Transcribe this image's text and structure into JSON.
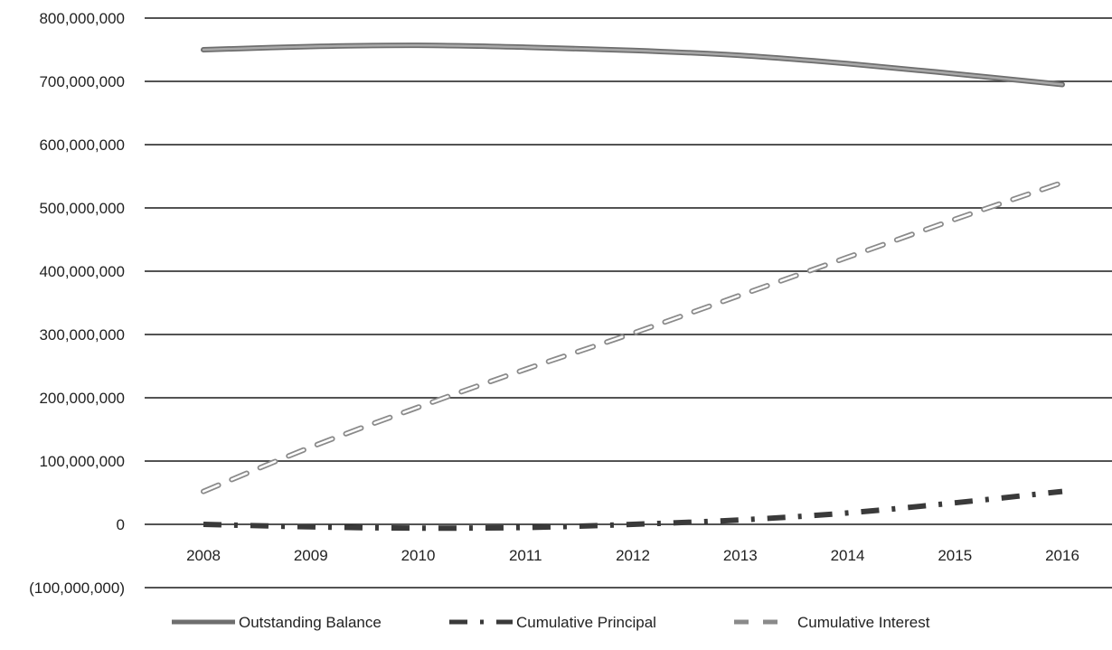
{
  "chart_data": {
    "type": "line",
    "title": "",
    "xlabel": "",
    "ylabel": "",
    "categories": [
      "2008",
      "2009",
      "2010",
      "2011",
      "2012",
      "2013",
      "2014",
      "2015",
      "2016"
    ],
    "ylim": [
      -100000000,
      800000000
    ],
    "y_ticks": [
      800000000,
      700000000,
      600000000,
      500000000,
      400000000,
      300000000,
      200000000,
      100000000,
      0,
      -100000000
    ],
    "y_tick_labels": [
      "800,000,000",
      "700,000,000",
      "600,000,000",
      "500,000,000",
      "400,000,000",
      "300,000,000",
      "200,000,000",
      "100,000,000",
      "0",
      "(100,000,000)"
    ],
    "grid": "horizontal",
    "legend_position": "bottom",
    "series": [
      {
        "name": "Outstanding Balance",
        "style": "solid",
        "color": "#7a7a7a",
        "values": [
          750000000,
          755000000,
          757000000,
          754000000,
          749000000,
          741000000,
          728000000,
          712000000,
          695000000
        ]
      },
      {
        "name": "Cumulative Principal",
        "style": "dash-dot",
        "color": "#333333",
        "values": [
          0,
          -4000000,
          -6000000,
          -5000000,
          0,
          7000000,
          18000000,
          34000000,
          52000000
        ]
      },
      {
        "name": "Cumulative Interest",
        "style": "double-dash",
        "color": "#888888",
        "values": [
          52000000,
          122000000,
          185000000,
          245000000,
          302000000,
          362000000,
          422000000,
          482000000,
          540000000
        ]
      }
    ]
  }
}
